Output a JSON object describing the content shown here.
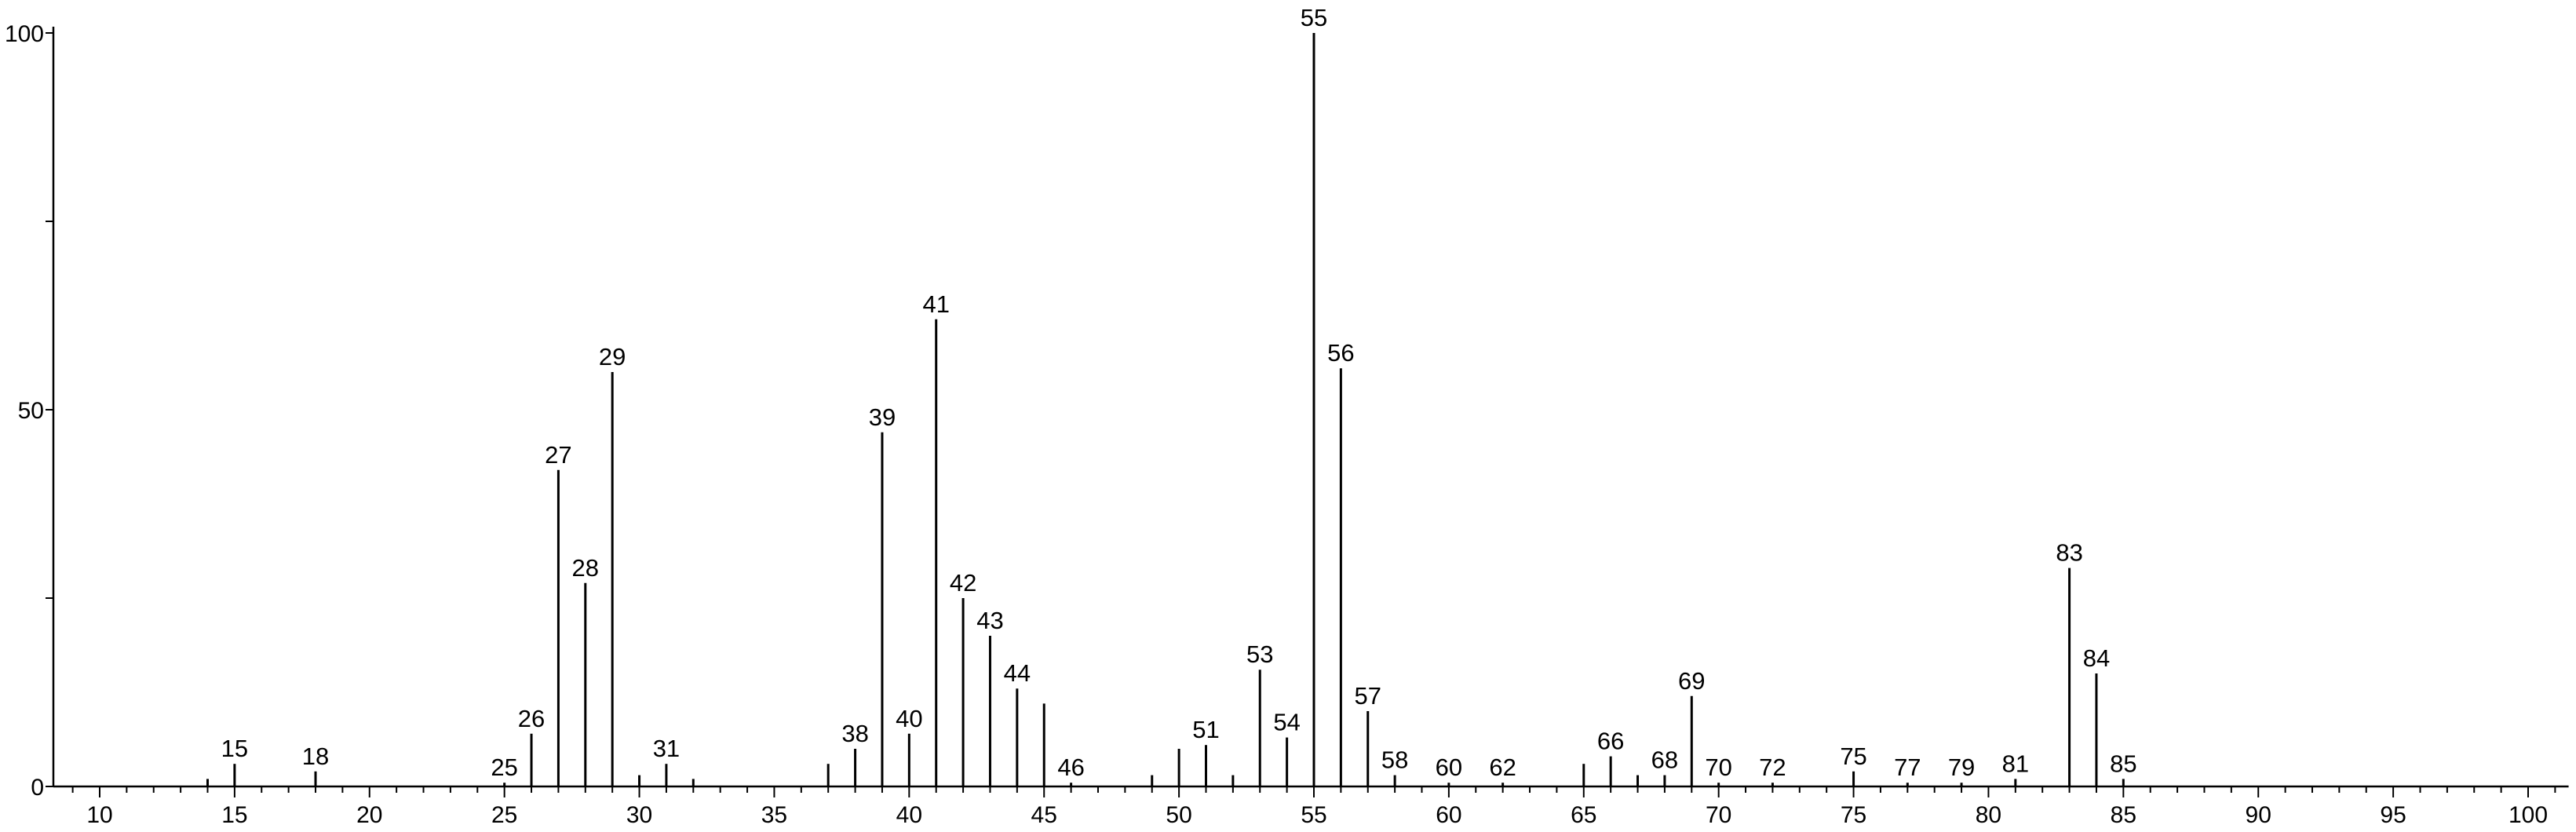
{
  "chart_data": {
    "type": "bar",
    "title": "",
    "xlabel": "",
    "ylabel": "",
    "xlim": [
      8.5,
      101.5
    ],
    "ylim": [
      0,
      100
    ],
    "grid": false,
    "x_ticks": [
      10,
      15,
      20,
      25,
      30,
      35,
      40,
      45,
      50,
      55,
      60,
      65,
      70,
      75,
      80,
      85,
      90,
      95,
      100
    ],
    "x_tick_labels": [
      "10",
      "15",
      "20",
      "25",
      "30",
      "35",
      "40",
      "45",
      "50",
      "55",
      "60",
      "65",
      "70",
      "75",
      "80",
      "85",
      "90",
      "95",
      "100"
    ],
    "y_ticks": [
      0,
      50,
      100
    ],
    "y_tick_labels": [
      "0",
      "50",
      "100"
    ],
    "peaks": [
      {
        "x": 14,
        "y": 1
      },
      {
        "x": 15,
        "y": 3,
        "label": "15"
      },
      {
        "x": 18,
        "y": 2,
        "label": "18"
      },
      {
        "x": 25,
        "y": 0.5,
        "label": "25"
      },
      {
        "x": 26,
        "y": 7,
        "label": "26"
      },
      {
        "x": 27,
        "y": 42,
        "label": "27"
      },
      {
        "x": 28,
        "y": 27,
        "label": "28"
      },
      {
        "x": 29,
        "y": 55,
        "label": "29"
      },
      {
        "x": 30,
        "y": 1.5
      },
      {
        "x": 31,
        "y": 3,
        "label": "31"
      },
      {
        "x": 32,
        "y": 1
      },
      {
        "x": 37,
        "y": 3
      },
      {
        "x": 38,
        "y": 5,
        "label": "38"
      },
      {
        "x": 39,
        "y": 47,
        "label": "39"
      },
      {
        "x": 40,
        "y": 7,
        "label": "40"
      },
      {
        "x": 41,
        "y": 62,
        "label": "41"
      },
      {
        "x": 42,
        "y": 25,
        "label": "42"
      },
      {
        "x": 43,
        "y": 20,
        "label": "43"
      },
      {
        "x": 44,
        "y": 13,
        "label": "44"
      },
      {
        "x": 45,
        "y": 11
      },
      {
        "x": 46,
        "y": 0.5,
        "label": "46"
      },
      {
        "x": 49,
        "y": 1.5
      },
      {
        "x": 50,
        "y": 5
      },
      {
        "x": 51,
        "y": 5.5,
        "label": "51"
      },
      {
        "x": 52,
        "y": 1.5
      },
      {
        "x": 53,
        "y": 15.5,
        "label": "53"
      },
      {
        "x": 54,
        "y": 6.5,
        "label": "54"
      },
      {
        "x": 55,
        "y": 100,
        "label": "55"
      },
      {
        "x": 56,
        "y": 55.5,
        "label": "56"
      },
      {
        "x": 57,
        "y": 10,
        "label": "57"
      },
      {
        "x": 58,
        "y": 1.5,
        "label": "58"
      },
      {
        "x": 60,
        "y": 0.5,
        "label": "60"
      },
      {
        "x": 62,
        "y": 0.5,
        "label": "62"
      },
      {
        "x": 65,
        "y": 3
      },
      {
        "x": 66,
        "y": 4,
        "label": "66"
      },
      {
        "x": 67,
        "y": 1.5
      },
      {
        "x": 68,
        "y": 1.5,
        "label": "68"
      },
      {
        "x": 69,
        "y": 12,
        "label": "69"
      },
      {
        "x": 70,
        "y": 0.5,
        "label": "70"
      },
      {
        "x": 72,
        "y": 0.5,
        "label": "72"
      },
      {
        "x": 75,
        "y": 2,
        "label": "75"
      },
      {
        "x": 77,
        "y": 0.5,
        "label": "77"
      },
      {
        "x": 79,
        "y": 0.5,
        "label": "79"
      },
      {
        "x": 81,
        "y": 1,
        "label": "81"
      },
      {
        "x": 83,
        "y": 29,
        "label": "83"
      },
      {
        "x": 84,
        "y": 15,
        "label": "84"
      },
      {
        "x": 85,
        "y": 1,
        "label": "85"
      }
    ]
  }
}
